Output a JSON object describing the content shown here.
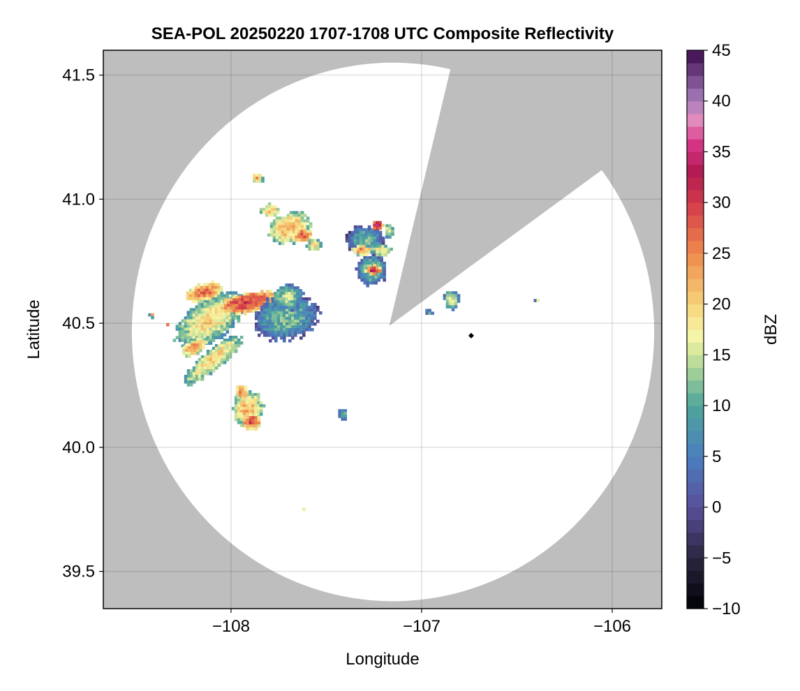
{
  "chart_data": {
    "type": "heatmap",
    "title": "SEA-POL 20250220 1707-1708 UTC Composite Reflectivity",
    "xlabel": "Longitude",
    "ylabel": "Latitude",
    "xlim": [
      -108.67,
      -105.74
    ],
    "ylim": [
      39.35,
      41.6
    ],
    "x_ticks": [
      -108,
      -107,
      -106
    ],
    "x_tick_labels": [
      "−108",
      "−107",
      "−106"
    ],
    "y_ticks": [
      39.5,
      40.0,
      40.5,
      41.0,
      41.5
    ],
    "y_tick_labels": [
      "39.5",
      "40.0",
      "40.5",
      "41.0",
      "41.5"
    ],
    "grid": true,
    "background_color": "#bebebe",
    "radar": {
      "center": [
        -107.17,
        40.49
      ],
      "range_edge_longitude": [
        -108.52,
        -105.78
      ],
      "range_edge_latitude": [
        39.38,
        41.55
      ],
      "blocked_sector_edges": [
        [
          [
            -107.17,
            40.49
          ],
          [
            -106.85,
            41.52
          ]
        ],
        [
          [
            -107.17,
            40.49
          ],
          [
            -106.05,
            41.12
          ]
        ]
      ]
    },
    "marker": {
      "lon": -106.74,
      "lat": 40.45,
      "shape": "diamond",
      "color": "#000000"
    },
    "colorbar": {
      "label": "dBZ",
      "range": [
        -10,
        45
      ],
      "ticks": [
        -10,
        -5,
        0,
        5,
        10,
        15,
        20,
        25,
        30,
        35,
        40,
        45
      ],
      "tick_labels": [
        "−10",
        "−5",
        "0",
        "5",
        "10",
        "15",
        "20",
        "25",
        "30",
        "35",
        "40",
        "45"
      ],
      "stops": [
        [
          -10,
          "#000004"
        ],
        [
          -5,
          "#2a2640"
        ],
        [
          0,
          "#5a4f9a"
        ],
        [
          5,
          "#4a7fc0"
        ],
        [
          10,
          "#4ea59a"
        ],
        [
          15,
          "#cfe59a"
        ],
        [
          17,
          "#f8f6a8"
        ],
        [
          20,
          "#f6d27a"
        ],
        [
          25,
          "#ee8a4c"
        ],
        [
          30,
          "#d2394a"
        ],
        [
          33,
          "#b01a52"
        ],
        [
          36,
          "#d9368a"
        ],
        [
          38,
          "#e58cbd"
        ],
        [
          40,
          "#a77fbd"
        ],
        [
          45,
          "#3d0a4e"
        ]
      ]
    },
    "echo_cells": [
      {
        "lon": -108.12,
        "lat": 40.52,
        "rx": 0.2,
        "ry": 0.08,
        "rot": -35,
        "dbz": 16
      },
      {
        "lon": -107.92,
        "lat": 40.59,
        "rx": 0.16,
        "ry": 0.04,
        "rot": -12,
        "dbz": 27
      },
      {
        "lon": -108.15,
        "lat": 40.63,
        "rx": 0.1,
        "ry": 0.035,
        "rot": -15,
        "dbz": 24
      },
      {
        "lon": -107.72,
        "lat": 40.53,
        "rx": 0.17,
        "ry": 0.09,
        "rot": -10,
        "dbz": 9
      },
      {
        "lon": -107.71,
        "lat": 40.61,
        "rx": 0.08,
        "ry": 0.05,
        "rot": 0,
        "dbz": 12
      },
      {
        "lon": -108.1,
        "lat": 40.36,
        "rx": 0.19,
        "ry": 0.04,
        "rot": -40,
        "dbz": 17
      },
      {
        "lon": -108.2,
        "lat": 40.41,
        "rx": 0.07,
        "ry": 0.03,
        "rot": -30,
        "dbz": 21
      },
      {
        "lon": -107.92,
        "lat": 40.16,
        "rx": 0.08,
        "ry": 0.07,
        "rot": 0,
        "dbz": 19
      },
      {
        "lon": -107.9,
        "lat": 40.11,
        "rx": 0.05,
        "ry": 0.03,
        "rot": 0,
        "dbz": 26
      },
      {
        "lon": -107.95,
        "lat": 40.23,
        "rx": 0.03,
        "ry": 0.03,
        "rot": 0,
        "dbz": 23
      },
      {
        "lon": -107.7,
        "lat": 40.89,
        "rx": 0.11,
        "ry": 0.06,
        "rot": -20,
        "dbz": 19
      },
      {
        "lon": -107.63,
        "lat": 40.86,
        "rx": 0.05,
        "ry": 0.03,
        "rot": 0,
        "dbz": 24
      },
      {
        "lon": -107.8,
        "lat": 40.96,
        "rx": 0.05,
        "ry": 0.025,
        "rot": 0,
        "dbz": 18
      },
      {
        "lon": -107.57,
        "lat": 40.82,
        "rx": 0.04,
        "ry": 0.025,
        "rot": 0,
        "dbz": 17
      },
      {
        "lon": -107.3,
        "lat": 40.84,
        "rx": 0.1,
        "ry": 0.06,
        "rot": 0,
        "dbz": 8
      },
      {
        "lon": -107.24,
        "lat": 40.9,
        "rx": 0.03,
        "ry": 0.02,
        "rot": 0,
        "dbz": 30
      },
      {
        "lon": -107.32,
        "lat": 40.8,
        "rx": 0.05,
        "ry": 0.02,
        "rot": 0,
        "dbz": 22
      },
      {
        "lon": -107.27,
        "lat": 40.72,
        "rx": 0.08,
        "ry": 0.06,
        "rot": -15,
        "dbz": 10
      },
      {
        "lon": -107.26,
        "lat": 40.72,
        "rx": 0.04,
        "ry": 0.018,
        "rot": 0,
        "dbz": 28
      },
      {
        "lon": -107.18,
        "lat": 40.88,
        "rx": 0.025,
        "ry": 0.03,
        "rot": 0,
        "dbz": 14
      },
      {
        "lon": -107.22,
        "lat": 40.8,
        "rx": 0.05,
        "ry": 0.025,
        "rot": 0,
        "dbz": 16
      },
      {
        "lon": -106.97,
        "lat": 40.55,
        "rx": 0.025,
        "ry": 0.012,
        "rot": 0,
        "dbz": 6
      },
      {
        "lon": -106.85,
        "lat": 40.6,
        "rx": 0.04,
        "ry": 0.04,
        "rot": 0,
        "dbz": 13
      },
      {
        "lon": -107.42,
        "lat": 40.14,
        "rx": 0.025,
        "ry": 0.025,
        "rot": 0,
        "dbz": 9
      },
      {
        "lon": -108.42,
        "lat": 40.54,
        "rx": 0.015,
        "ry": 0.01,
        "rot": 0,
        "dbz": 18
      },
      {
        "lon": -108.34,
        "lat": 40.5,
        "rx": 0.015,
        "ry": 0.01,
        "rot": 0,
        "dbz": 22
      },
      {
        "lon": -107.63,
        "lat": 39.76,
        "rx": 0.01,
        "ry": 0.008,
        "rot": 0,
        "dbz": 17
      },
      {
        "lon": -106.4,
        "lat": 40.6,
        "rx": 0.012,
        "ry": 0.008,
        "rot": 0,
        "dbz": 14
      },
      {
        "lon": -107.87,
        "lat": 41.09,
        "rx": 0.03,
        "ry": 0.02,
        "rot": 0,
        "dbz": 20
      }
    ]
  }
}
